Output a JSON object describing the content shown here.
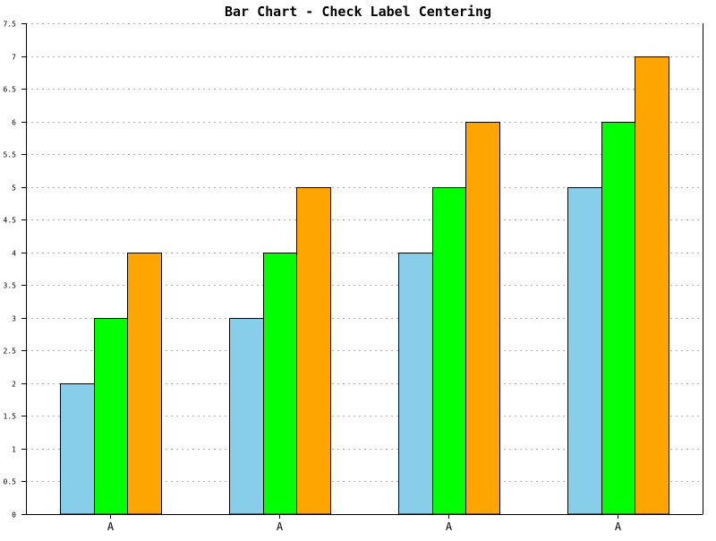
{
  "chart_data": {
    "type": "bar",
    "title": "Bar Chart - Check Label Centering",
    "xlabel": "",
    "ylabel": "",
    "categories": [
      "A",
      "A",
      "A",
      "A"
    ],
    "series": [
      {
        "values": [
          2,
          3,
          4,
          5
        ],
        "color": "#87CEEB"
      },
      {
        "values": [
          3,
          4,
          5,
          6
        ],
        "color": "#00FF00"
      },
      {
        "values": [
          4,
          5,
          6,
          7
        ],
        "color": "#FFA500"
      }
    ],
    "ylim": [
      0,
      7.5
    ],
    "yticks": [
      "0",
      "0.5",
      "1",
      "1.5",
      "2",
      "2.5",
      "3",
      "3.5",
      "4",
      "4.5",
      "5",
      "5.5",
      "6",
      "6.5",
      "7",
      "7.5"
    ],
    "grid": true,
    "legend": "none"
  }
}
